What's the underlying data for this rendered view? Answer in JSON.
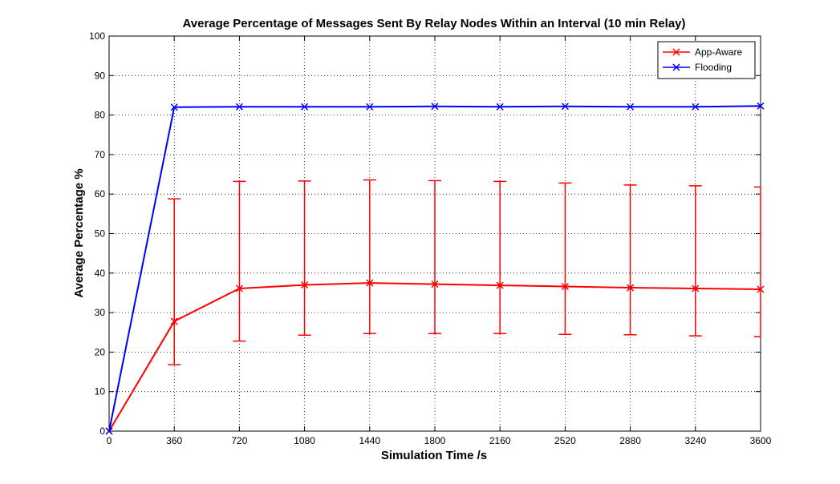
{
  "chart_data": {
    "type": "line",
    "title": "Average Percentage of Messages Sent By Relay Nodes Within an Interval (10 min Relay)",
    "xlabel": "Simulation Time /s",
    "ylabel": "Average Percentage %",
    "xlim": [
      0,
      3600
    ],
    "ylim": [
      0,
      100
    ],
    "x_ticks": [
      "0",
      "360",
      "720",
      "1080",
      "1440",
      "1800",
      "2160",
      "2520",
      "2880",
      "3240",
      "3600"
    ],
    "y_ticks": [
      "0",
      "10",
      "20",
      "30",
      "40",
      "50",
      "60",
      "70",
      "80",
      "90",
      "100"
    ],
    "grid": true,
    "legend_position": "top-right",
    "x": [
      0,
      360,
      720,
      1080,
      1440,
      1800,
      2160,
      2520,
      2880,
      3240,
      3600
    ],
    "series": [
      {
        "name": "App-Aware",
        "color": "#ff0000",
        "values": [
          0,
          27.8,
          36.1,
          37.0,
          37.5,
          37.2,
          36.9,
          36.6,
          36.3,
          36.1,
          35.9
        ],
        "error_low": [
          null,
          16.8,
          22.8,
          24.3,
          24.7,
          24.7,
          24.7,
          24.5,
          24.4,
          24.1,
          23.9
        ],
        "error_high": [
          null,
          58.8,
          63.2,
          63.3,
          63.6,
          63.4,
          63.2,
          62.8,
          62.3,
          62.1,
          61.8
        ]
      },
      {
        "name": "Flooding",
        "color": "#0000ff",
        "values": [
          0,
          82.0,
          82.1,
          82.1,
          82.1,
          82.2,
          82.1,
          82.2,
          82.1,
          82.1,
          82.3
        ]
      }
    ]
  }
}
